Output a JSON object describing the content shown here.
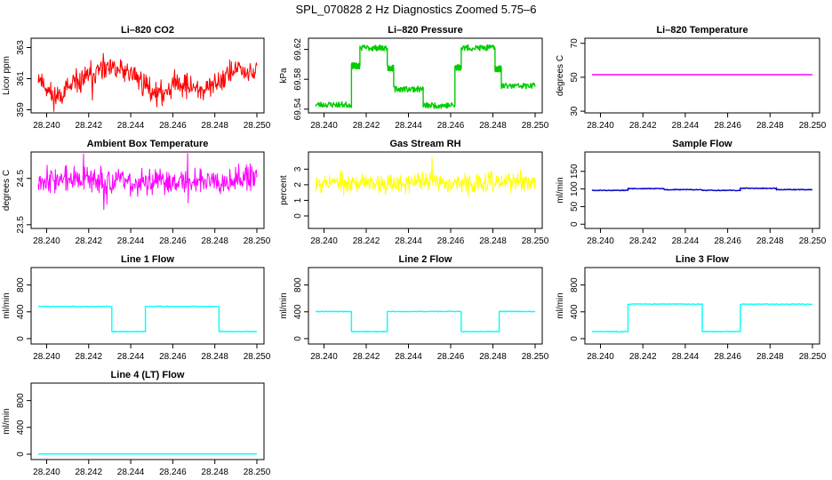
{
  "figure_title": "SPL_070828  2 Hz Diagnostics Zoomed 5.75–6",
  "colors": {
    "red": "#ff0000",
    "green": "#00cc00",
    "magenta": "#ff00ff",
    "yellow": "#ffff00",
    "blue": "#0000cc",
    "cyan": "#00ffff",
    "axis": "#000000",
    "background": "#ffffff"
  },
  "chart_data": [
    {
      "type": "line",
      "title": "Li–820 CO2",
      "xlabel": "",
      "ylabel": "Licor ppm",
      "xlim": [
        28.2396,
        28.25
      ],
      "ylim": [
        358.8,
        363.6
      ],
      "xticks": [
        "28.240",
        "28.242",
        "28.244",
        "28.246",
        "28.248",
        "28.250"
      ],
      "yticks": [
        "359",
        "361",
        "363"
      ],
      "grid": false,
      "series": [
        {
          "name": "CO2",
          "color": "#ff0000",
          "pattern": "noisy",
          "x": [
            28.2396,
            28.2403,
            28.241,
            28.2418,
            28.2425,
            28.2432,
            28.244,
            28.2447,
            28.2454,
            28.2461,
            28.2468,
            28.2476,
            28.2483,
            28.249,
            28.2497,
            28.25
          ],
          "y": [
            361.2,
            359.8,
            360.3,
            361.0,
            361.5,
            361.6,
            361.4,
            360.6,
            359.9,
            360.8,
            360.5,
            360.2,
            361.0,
            361.6,
            361.3,
            361.5
          ],
          "noise": 0.55,
          "seed": 11
        }
      ]
    },
    {
      "type": "line",
      "title": "Li–820 Pressure",
      "xlabel": "",
      "ylabel": "kPa",
      "xlim": [
        28.2396,
        28.25
      ],
      "ylim": [
        69.535,
        69.635
      ],
      "xticks": [
        "28.240",
        "28.242",
        "28.244",
        "28.246",
        "28.248",
        "28.250"
      ],
      "yticks": [
        "69.54",
        "69.58",
        "69.62"
      ],
      "grid": false,
      "series": [
        {
          "name": "Pressure",
          "color": "#00cc00",
          "pattern": "step",
          "breaks": [
            28.2396,
            28.2413,
            28.2417,
            28.243,
            28.2433,
            28.2447,
            28.2462,
            28.2465,
            28.2481,
            28.2484,
            28.25
          ],
          "levels": [
            69.546,
            69.598,
            69.622,
            69.595,
            69.567,
            69.545,
            69.596,
            69.622,
            69.594,
            69.571
          ],
          "noise": 0.004,
          "seed": 23
        }
      ]
    },
    {
      "type": "line",
      "title": "Li–820 Temperature",
      "xlabel": "",
      "ylabel": "degrees C",
      "xlim": [
        28.2396,
        28.25
      ],
      "ylim": [
        29,
        73
      ],
      "xticks": [
        "28.240",
        "28.242",
        "28.244",
        "28.246",
        "28.248",
        "28.250"
      ],
      "yticks": [
        "30",
        "50",
        "70"
      ],
      "grid": false,
      "series": [
        {
          "name": "Temperature",
          "color": "#ff00ff",
          "pattern": "flat",
          "x": [
            28.2396,
            28.25
          ],
          "y": [
            51.5,
            51.5
          ]
        }
      ]
    },
    {
      "type": "line",
      "title": "Ambient Box Temperature",
      "xlabel": "",
      "ylabel": "degrees C",
      "xlim": [
        28.2396,
        28.25
      ],
      "ylim": [
        23.42,
        25.07
      ],
      "xticks": [
        "28.240",
        "28.242",
        "28.244",
        "28.246",
        "28.248",
        "28.250"
      ],
      "yticks": [
        "23.5",
        "24.5"
      ],
      "grid": false,
      "series": [
        {
          "name": "Box temperature",
          "color": "#ff00ff",
          "pattern": "noisy",
          "x": [
            28.2396,
            28.2425,
            28.245,
            28.2475,
            28.25
          ],
          "y": [
            24.5,
            24.45,
            24.4,
            24.48,
            24.5
          ],
          "noise": 0.2,
          "seed": 37
        }
      ]
    },
    {
      "type": "line",
      "title": "Gas Stream RH",
      "xlabel": "",
      "ylabel": "percent",
      "xlim": [
        28.2396,
        28.25
      ],
      "ylim": [
        -0.8,
        4.1
      ],
      "xticks": [
        "28.240",
        "28.242",
        "28.244",
        "28.246",
        "28.248",
        "28.250"
      ],
      "yticks": [
        "0",
        "1",
        "2",
        "3"
      ],
      "grid": false,
      "series": [
        {
          "name": "RH",
          "color": "#ffff00",
          "pattern": "noisy",
          "x": [
            28.2396,
            28.2425,
            28.245,
            28.2475,
            28.25
          ],
          "y": [
            2.2,
            2.1,
            2.2,
            2.1,
            2.2
          ],
          "noise": 0.45,
          "seed": 53
        }
      ]
    },
    {
      "type": "line",
      "title": "Sample Flow",
      "xlabel": "",
      "ylabel": "ml/min",
      "xlim": [
        28.2396,
        28.25
      ],
      "ylim": [
        -12,
        205
      ],
      "xticks": [
        "28.240",
        "28.242",
        "28.244",
        "28.246",
        "28.248",
        "28.250"
      ],
      "yticks": [
        "0",
        "50",
        "100",
        "150"
      ],
      "grid": false,
      "series": [
        {
          "name": "Sample flow",
          "color": "#0000cc",
          "pattern": "step",
          "breaks": [
            28.2396,
            28.2413,
            28.243,
            28.2448,
            28.2466,
            28.2483,
            28.25
          ],
          "levels": [
            96,
            101,
            98,
            96,
            102,
            98
          ],
          "noise": 1.2,
          "seed": 61
        }
      ]
    },
    {
      "type": "line",
      "title": "Line 1 Flow",
      "xlabel": "",
      "ylabel": "ml/min",
      "xlim": [
        28.2396,
        28.25
      ],
      "ylim": [
        -80,
        1060
      ],
      "xticks": [
        "28.240",
        "28.242",
        "28.244",
        "28.246",
        "28.248",
        "28.250"
      ],
      "yticks": [
        "0",
        "400",
        "800"
      ],
      "grid": false,
      "series": [
        {
          "name": "Line 1",
          "color": "#00ffff",
          "pattern": "step",
          "breaks": [
            28.2396,
            28.2431,
            28.2447,
            28.2482,
            28.25
          ],
          "levels": [
            480,
            105,
            480,
            105
          ],
          "noise": 5,
          "seed": 71
        }
      ]
    },
    {
      "type": "line",
      "title": "Line 2 Flow",
      "xlabel": "",
      "ylabel": "ml/min",
      "xlim": [
        28.2396,
        28.25
      ],
      "ylim": [
        -80,
        1060
      ],
      "xticks": [
        "28.240",
        "28.242",
        "28.244",
        "28.246",
        "28.248",
        "28.250"
      ],
      "yticks": [
        "0",
        "400",
        "800"
      ],
      "grid": false,
      "series": [
        {
          "name": "Line 2",
          "color": "#00ffff",
          "pattern": "step",
          "breaks": [
            28.2396,
            28.2413,
            28.243,
            28.2465,
            28.2483,
            28.25
          ],
          "levels": [
            405,
            105,
            405,
            105,
            405
          ],
          "noise": 5,
          "seed": 79
        }
      ]
    },
    {
      "type": "line",
      "title": "Line 3 Flow",
      "xlabel": "",
      "ylabel": "ml/min",
      "xlim": [
        28.2396,
        28.25
      ],
      "ylim": [
        -80,
        1060
      ],
      "xticks": [
        "28.240",
        "28.242",
        "28.244",
        "28.246",
        "28.248",
        "28.250"
      ],
      "yticks": [
        "0",
        "400",
        "800"
      ],
      "grid": false,
      "series": [
        {
          "name": "Line 3",
          "color": "#00ffff",
          "pattern": "step",
          "breaks": [
            28.2396,
            28.2413,
            28.2448,
            28.2466,
            28.25
          ],
          "levels": [
            105,
            515,
            105,
            515
          ],
          "noise": 5,
          "seed": 83
        }
      ]
    },
    {
      "type": "line",
      "title": "Line 4 (LT) Flow",
      "xlabel": "",
      "ylabel": "ml/min",
      "xlim": [
        28.2396,
        28.25
      ],
      "ylim": [
        -80,
        1060
      ],
      "xticks": [
        "28.240",
        "28.242",
        "28.244",
        "28.246",
        "28.248",
        "28.250"
      ],
      "yticks": [
        "0",
        "400",
        "800"
      ],
      "grid": false,
      "series": [
        {
          "name": "Line 4 (LT)",
          "color": "#00ffff",
          "pattern": "flat",
          "x": [
            28.2396,
            28.25
          ],
          "y": [
            3,
            3
          ]
        }
      ]
    }
  ]
}
